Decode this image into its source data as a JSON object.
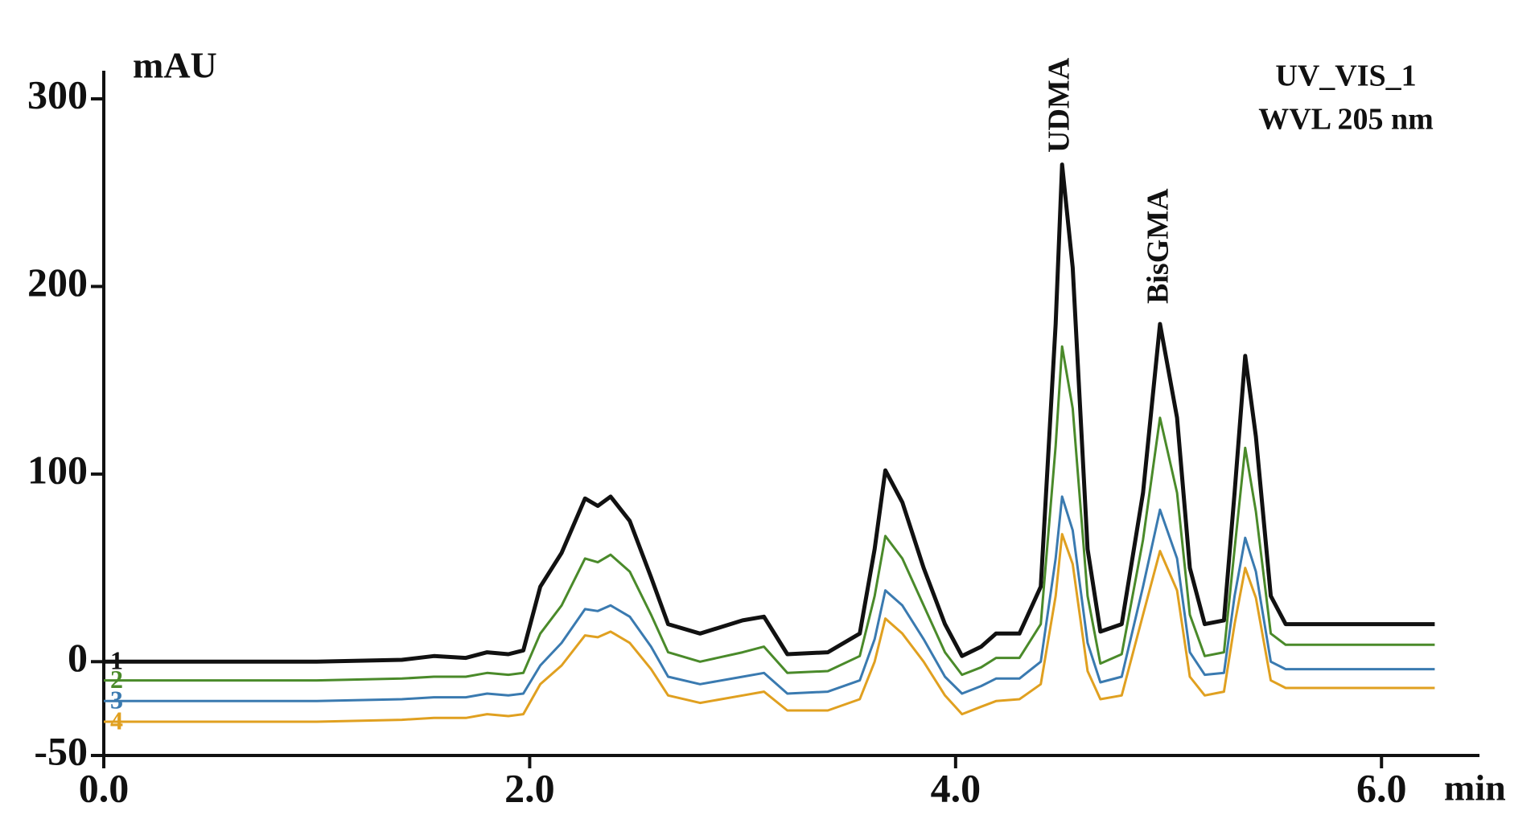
{
  "chart_data": {
    "type": "line",
    "ylabel": "mAU",
    "xlabel": "min",
    "annotations": [
      "UV_VIS_1",
      "WVL 205 nm",
      "UDMA",
      "BisGMA"
    ],
    "x": [
      0,
      1.0,
      1.4,
      1.55,
      1.7,
      1.8,
      1.9,
      1.97,
      2.05,
      2.15,
      2.26,
      2.32,
      2.38,
      2.47,
      2.57,
      2.65,
      2.8,
      3.0,
      3.1,
      3.21,
      3.4,
      3.55,
      3.62,
      3.67,
      3.75,
      3.85,
      3.95,
      4.03,
      4.12,
      4.19,
      4.3,
      4.4,
      4.47,
      4.5,
      4.55,
      4.62,
      4.68,
      4.78,
      4.88,
      4.96,
      5.04,
      5.1,
      5.17,
      5.26,
      5.31,
      5.36,
      5.41,
      5.48,
      5.55,
      6.25
    ],
    "series": [
      {
        "name": "1",
        "color": "#111111",
        "values": [
          0,
          0,
          1,
          3,
          2,
          5,
          4,
          6,
          40,
          58,
          87,
          83,
          88,
          75,
          45,
          20,
          15,
          22,
          24,
          4,
          5,
          15,
          60,
          102,
          85,
          50,
          20,
          3,
          8,
          15,
          15,
          40,
          180,
          265,
          210,
          60,
          16,
          20,
          90,
          180,
          130,
          50,
          20,
          22,
          90,
          163,
          120,
          35,
          20,
          20
        ]
      },
      {
        "name": "2",
        "color": "#4a8a2a",
        "values": [
          -10,
          -10,
          -9,
          -8,
          -8,
          -6,
          -7,
          -6,
          15,
          30,
          55,
          53,
          57,
          48,
          25,
          5,
          0,
          5,
          8,
          -6,
          -5,
          3,
          35,
          67,
          55,
          30,
          5,
          -7,
          -3,
          2,
          2,
          20,
          115,
          168,
          135,
          35,
          -1,
          4,
          65,
          130,
          90,
          25,
          3,
          5,
          60,
          114,
          80,
          15,
          9,
          9
        ]
      },
      {
        "name": "3",
        "color": "#3a7ab0",
        "values": [
          -21,
          -21,
          -20,
          -19,
          -19,
          -17,
          -18,
          -17,
          -2,
          10,
          28,
          27,
          30,
          24,
          8,
          -8,
          -12,
          -8,
          -6,
          -17,
          -16,
          -10,
          12,
          38,
          30,
          12,
          -8,
          -17,
          -13,
          -9,
          -9,
          0,
          55,
          88,
          70,
          10,
          -11,
          -8,
          40,
          81,
          55,
          5,
          -7,
          -6,
          35,
          66,
          48,
          0,
          -4,
          -4
        ]
      },
      {
        "name": "4",
        "color": "#e0a020",
        "values": [
          -32,
          -32,
          -31,
          -30,
          -30,
          -28,
          -29,
          -28,
          -12,
          -2,
          14,
          13,
          16,
          10,
          -4,
          -18,
          -22,
          -18,
          -16,
          -26,
          -26,
          -20,
          0,
          23,
          15,
          0,
          -18,
          -28,
          -24,
          -21,
          -20,
          -12,
          35,
          68,
          52,
          -5,
          -20,
          -18,
          25,
          59,
          38,
          -8,
          -18,
          -16,
          20,
          50,
          34,
          -10,
          -14,
          -14
        ]
      }
    ],
    "xlim": [
      0,
      6.46
    ],
    "ylim": [
      -50,
      315
    ],
    "xticks": [
      {
        "value": 0,
        "label": "0.0"
      },
      {
        "value": 2,
        "label": "2.0"
      },
      {
        "value": 4,
        "label": "4.0"
      },
      {
        "value": 6,
        "label": "6.0"
      }
    ],
    "yticks": [
      -50,
      0,
      100,
      200,
      300
    ]
  }
}
